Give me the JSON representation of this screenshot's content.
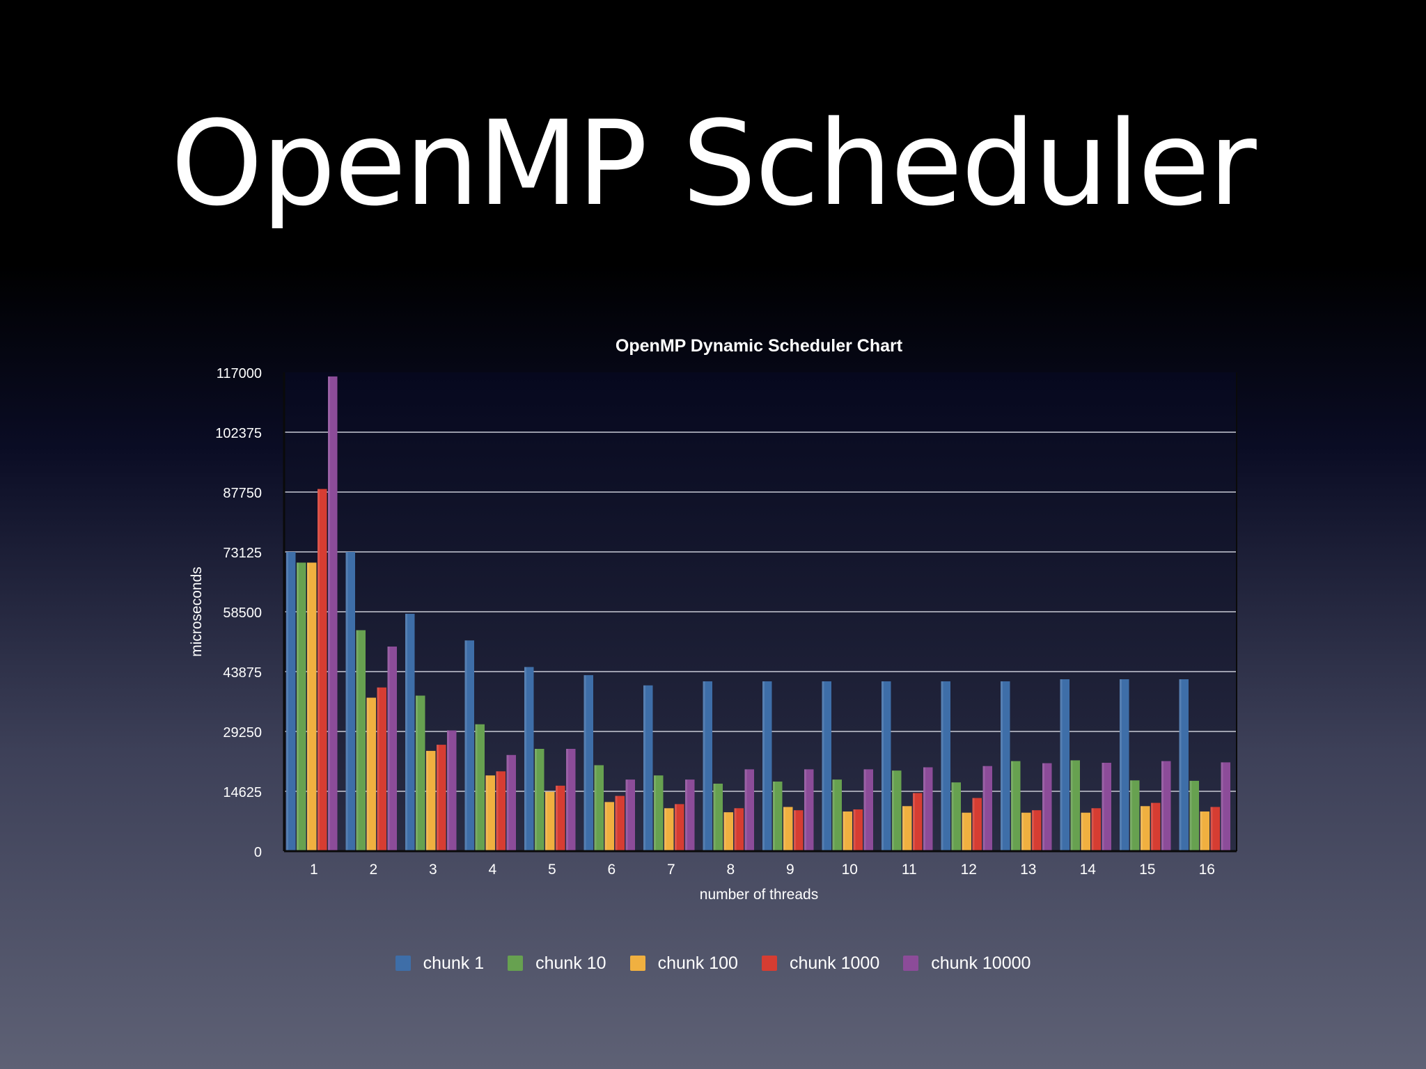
{
  "slide": {
    "title": "OpenMP Scheduler"
  },
  "chart_data": {
    "type": "bar",
    "title": "OpenMP Dynamic Scheduler Chart",
    "xlabel": "number of threads",
    "ylabel": "microseconds",
    "ylim": [
      0,
      117000
    ],
    "yticks": [
      0,
      14625,
      29250,
      43875,
      58500,
      73125,
      87750,
      102375,
      117000
    ],
    "grid": true,
    "legend_position": "bottom",
    "categories": [
      "1",
      "2",
      "3",
      "4",
      "5",
      "6",
      "7",
      "8",
      "9",
      "10",
      "11",
      "12",
      "13",
      "14",
      "15",
      "16"
    ],
    "series": [
      {
        "name": "chunk 1",
        "color": "#3e6ea8",
        "values": [
          73125,
          73125,
          58000,
          51500,
          45000,
          43000,
          40500,
          41500,
          41500,
          41500,
          41500,
          41500,
          41500,
          42000,
          42000,
          42000
        ]
      },
      {
        "name": "chunk 10",
        "color": "#67a150",
        "values": [
          70500,
          54000,
          38000,
          31000,
          25000,
          21000,
          18500,
          16500,
          17000,
          17500,
          19700,
          16800,
          22000,
          22200,
          17300,
          17200
        ]
      },
      {
        "name": "chunk 100",
        "color": "#f0b040",
        "values": [
          70500,
          37500,
          24500,
          18500,
          14500,
          12000,
          10500,
          9500,
          10800,
          9700,
          11000,
          9400,
          9400,
          9400,
          11000,
          9700
        ]
      },
      {
        "name": "chunk 1000",
        "color": "#d63d32",
        "values": [
          88500,
          40000,
          26000,
          19500,
          16000,
          13500,
          11500,
          10500,
          10000,
          10200,
          14200,
          13000,
          10000,
          10500,
          11800,
          10800
        ]
      },
      {
        "name": "chunk 10000",
        "color": "#8c4c99",
        "values": [
          116000,
          50000,
          29500,
          23500,
          25000,
          17500,
          17500,
          20000,
          20000,
          20000,
          20500,
          20800,
          21500,
          21600,
          22000,
          21700
        ]
      }
    ]
  }
}
